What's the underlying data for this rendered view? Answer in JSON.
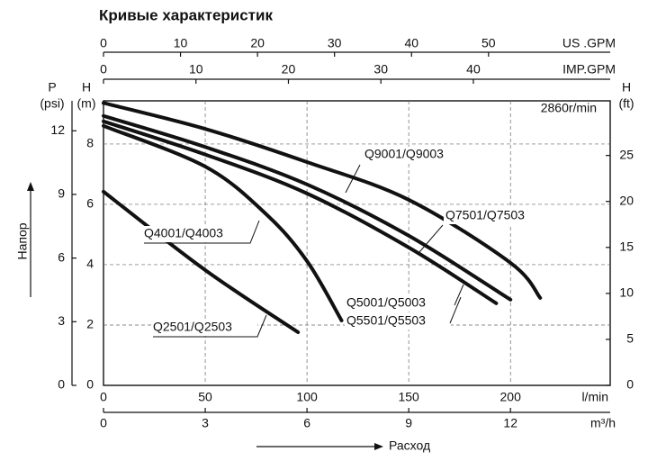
{
  "chart_data": {
    "type": "line",
    "title": "Кривые характеристик",
    "speed": "2860r/min",
    "y_title": "Напор",
    "x_title": "Расход",
    "xlabel": "l/min",
    "xlim": [
      0,
      249
    ],
    "xticks": [
      0,
      50,
      100,
      150,
      200
    ],
    "x_m3h": {
      "label": "m³/h",
      "lim": [
        0,
        14.94
      ],
      "ticks": [
        0,
        3,
        6,
        9,
        12
      ]
    },
    "x_us": {
      "label": "US .GPM",
      "lim": [
        0,
        65.8
      ],
      "ticks": [
        0,
        10,
        20,
        30,
        40,
        50
      ]
    },
    "x_imp": {
      "label": "IMP.GPM",
      "lim": [
        0,
        54.8
      ],
      "ticks": [
        0,
        10,
        20,
        30,
        40
      ]
    },
    "ylabel": [
      "H",
      "(m)"
    ],
    "ylim": [
      0,
      9.43
    ],
    "yticks": [
      0,
      2,
      4,
      6,
      8
    ],
    "y_psi": {
      "label": [
        "P",
        "(psi)"
      ],
      "lim": [
        0,
        13.41
      ],
      "ticks": [
        0,
        3,
        6,
        9,
        12
      ]
    },
    "y2": {
      "label": [
        "H",
        "(ft)"
      ],
      "lim": [
        0,
        30.94
      ],
      "ticks": [
        0,
        5,
        10,
        15,
        20,
        25
      ]
    },
    "grid": true,
    "series": [
      {
        "name": "Q9001/Q9003",
        "color": "#111111",
        "x": [
          0,
          50,
          100,
          150,
          200,
          214.6
        ],
        "values": [
          9.36,
          8.5,
          7.4,
          6.15,
          4.06,
          2.9
        ]
      },
      {
        "name": "Q7501/Q7503",
        "color": "#111111",
        "x": [
          0,
          50,
          100,
          150,
          200
        ],
        "values": [
          8.93,
          7.9,
          6.66,
          4.96,
          2.84
        ]
      },
      {
        "name": "Q5001/Q5003",
        "color": "#111111",
        "x": [
          0,
          50,
          100,
          150,
          193
        ],
        "values": [
          8.75,
          7.65,
          6.36,
          4.57,
          2.72
        ]
      },
      {
        "name": "Q4001/Q4003",
        "color": "#111111",
        "x": [
          0,
          50,
          80,
          100,
          117
        ],
        "values": [
          8.6,
          7.25,
          5.67,
          4.12,
          2.15
        ]
      },
      {
        "name": "Q2501/Q2503",
        "color": "#111111",
        "x": [
          0,
          50,
          95.6
        ],
        "values": [
          6.42,
          3.82,
          1.76
        ]
      }
    ],
    "annotations": [
      "Q5501/Q5503"
    ]
  }
}
